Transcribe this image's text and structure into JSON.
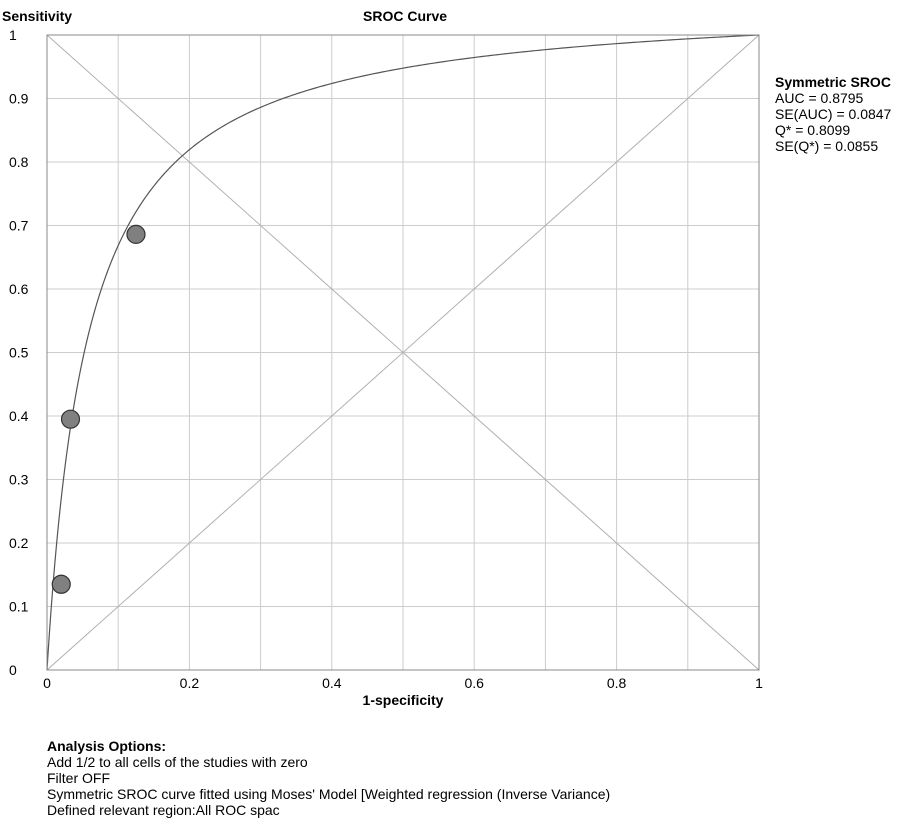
{
  "chart_data": {
    "type": "scatter",
    "title": "SROC Curve",
    "xlabel": "1-specificity",
    "ylabel": "Sensitivity",
    "xlim": [
      0,
      1
    ],
    "ylim": [
      0,
      1
    ],
    "grid": true,
    "x_ticks": [
      "0",
      "0.2",
      "0.4",
      "0.6",
      "0.8",
      "1"
    ],
    "y_ticks": [
      "0",
      "0.1",
      "0.2",
      "0.3",
      "0.4",
      "0.5",
      "0.6",
      "0.7",
      "0.8",
      "0.9",
      "1"
    ],
    "points": [
      {
        "x": 0.02,
        "y": 0.135
      },
      {
        "x": 0.033,
        "y": 0.395
      },
      {
        "x": 0.125,
        "y": 0.686
      }
    ],
    "sroc_curve": {
      "model": "Moses symmetric",
      "auc": 0.8795,
      "q_star": 0.8099
    },
    "reference_lines": [
      "diagonal (0,0)-(1,1)",
      "anti-diagonal (0,1)-(1,0)"
    ]
  },
  "summary": {
    "heading": "Symmetric SROC",
    "lines": [
      "AUC = 0.8795",
      "SE(AUC) = 0.0847",
      "Q* = 0.8099",
      "SE(Q*) = 0.0855"
    ]
  },
  "options": {
    "heading": "Analysis Options:",
    "lines": [
      "Add 1/2 to all cells of the studies with zero",
      "Filter OFF",
      "Symmetric SROC curve fitted using Moses' Model [Weighted regression (Inverse Variance)",
      "Defined relevant region:All ROC spac"
    ]
  },
  "colors": {
    "grid": "#cccccc",
    "axis": "#888888",
    "curve": "#555555",
    "point_fill": "#808080",
    "point_stroke": "#333333"
  }
}
